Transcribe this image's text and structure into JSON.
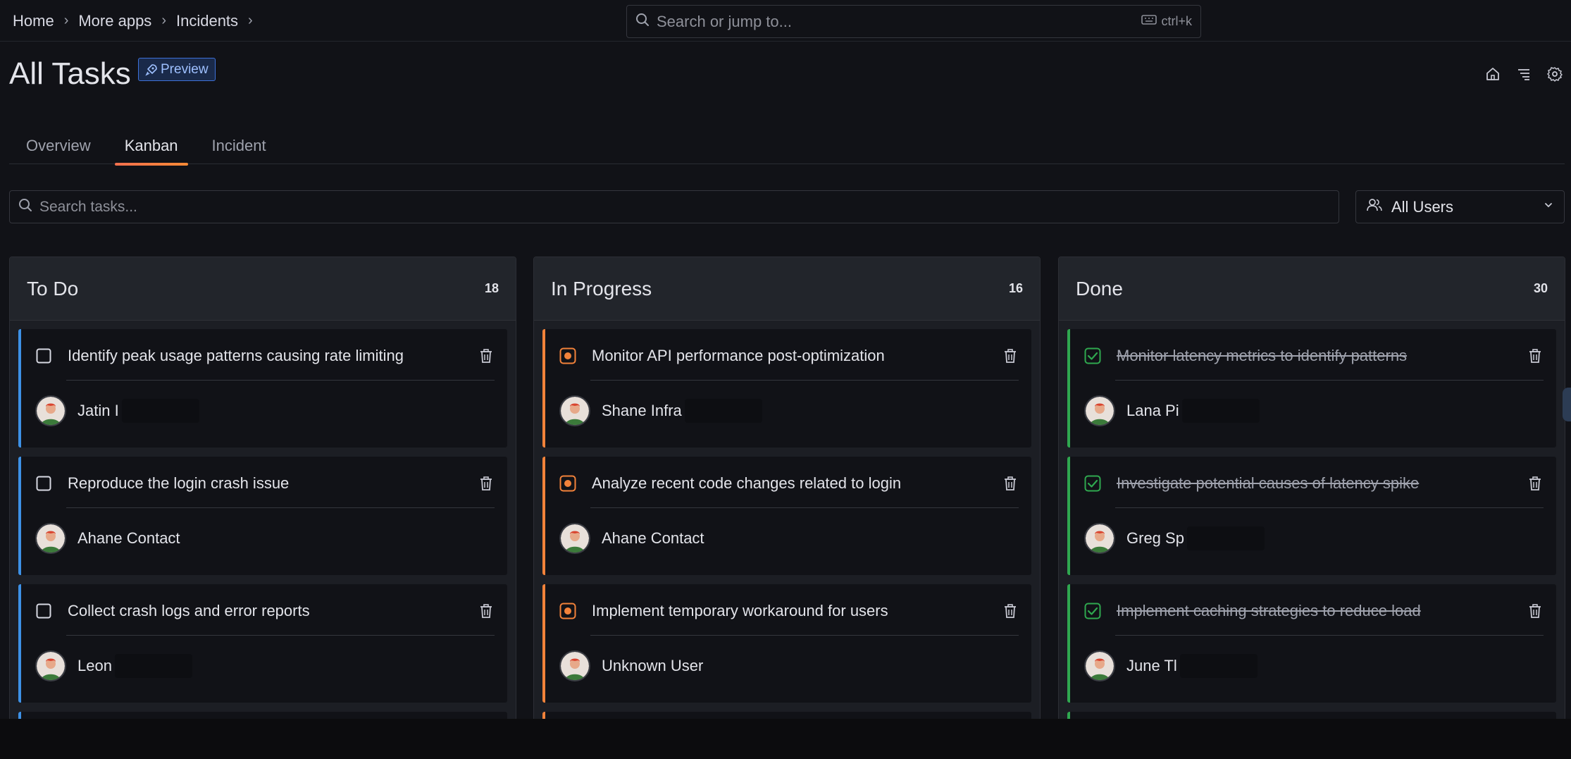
{
  "breadcrumb": {
    "items": [
      "Home",
      "More apps",
      "Incidents"
    ],
    "separator": "›"
  },
  "global_search": {
    "placeholder": "Search or jump to...",
    "shortcut": "ctrl+k"
  },
  "page": {
    "title": "All Tasks",
    "badge": "Preview"
  },
  "header_actions": [
    "home-icon",
    "list-icon",
    "settings-icon"
  ],
  "tabs": [
    {
      "label": "Overview",
      "active": false
    },
    {
      "label": "Kanban",
      "active": true
    },
    {
      "label": "Incident",
      "active": false
    }
  ],
  "filters": {
    "search_placeholder": "Search tasks...",
    "user_select": "All Users"
  },
  "columns": [
    {
      "title": "To Do",
      "count": "18",
      "cards": [
        {
          "title": "Identify peak usage patterns causing rate limiting",
          "assignee": "Jatin I"
        },
        {
          "title": "Reproduce the login crash issue",
          "assignee": "Ahane Contact"
        },
        {
          "title": "Collect crash logs and error reports",
          "assignee": "Leon"
        }
      ]
    },
    {
      "title": "In Progress",
      "count": "16",
      "cards": [
        {
          "title": "Monitor API performance post-optimization",
          "assignee": "Shane Infra"
        },
        {
          "title": "Analyze recent code changes related to login",
          "assignee": "Ahane Contact"
        },
        {
          "title": "Implement temporary workaround for users",
          "assignee": "Unknown User"
        }
      ]
    },
    {
      "title": "Done",
      "count": "30",
      "cards": [
        {
          "title": "Monitor latency metrics to identify patterns",
          "assignee": "Lana Pi"
        },
        {
          "title": "Investigate potential causes of latency spike",
          "assignee": "Greg Sp"
        },
        {
          "title": "Implement caching strategies to reduce load",
          "assignee": "June Tl"
        }
      ]
    }
  ],
  "colors": {
    "todo": "#3d91e6",
    "in_progress": "#f2823a",
    "done": "#2fa84f",
    "accent": "#f55f3e"
  }
}
